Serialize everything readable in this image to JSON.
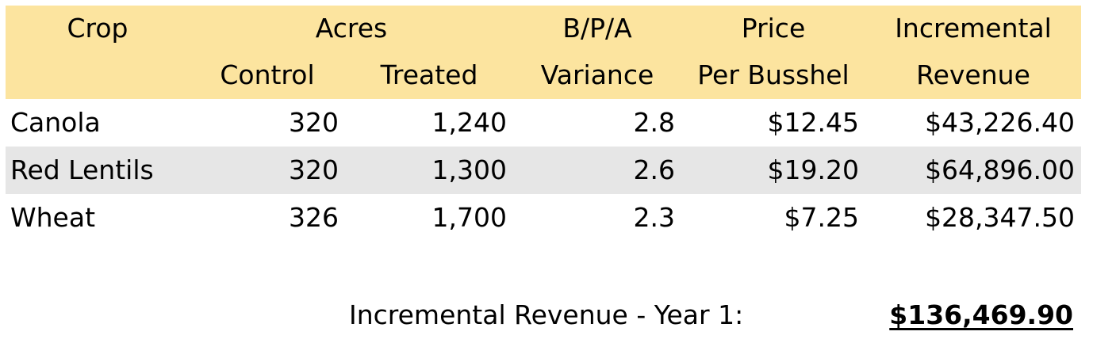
{
  "header": {
    "row1": {
      "crop": "Crop",
      "acres": "Acres",
      "bpa": "B/P/A",
      "price": "Price",
      "revenue": "Incremental"
    },
    "row2": {
      "control": "Control",
      "treated": "Treated",
      "bpa": "Variance",
      "price": "Per Busshel",
      "revenue": "Revenue"
    }
  },
  "rows": [
    {
      "crop": "Canola",
      "control": "320",
      "treated": "1,240",
      "variance": "2.8",
      "price": "$12.45",
      "revenue": "$43,226.40"
    },
    {
      "crop": "Red Lentils",
      "control": "320",
      "treated": "1,300",
      "variance": "2.6",
      "price": "$19.20",
      "revenue": "$64,896.00"
    },
    {
      "crop": "Wheat",
      "control": "326",
      "treated": "1,700",
      "variance": "2.3",
      "price": "$7.25",
      "revenue": "$28,347.50"
    }
  ],
  "total": {
    "label": "Incremental Revenue - Year 1:",
    "value": "$136,469.90"
  },
  "colors": {
    "header_background": "#fce49f",
    "alternate_row_background": "#e6e6e6"
  }
}
